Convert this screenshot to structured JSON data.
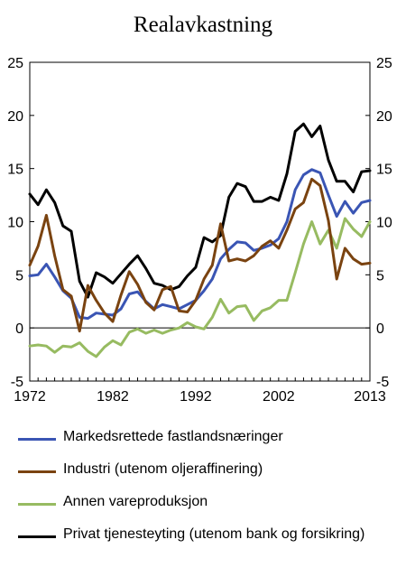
{
  "chart_data": {
    "type": "line",
    "title": "Realavkastning",
    "xlabel": "",
    "ylabel": "",
    "x": [
      1972,
      1973,
      1974,
      1975,
      1976,
      1977,
      1978,
      1979,
      1980,
      1981,
      1982,
      1983,
      1984,
      1985,
      1986,
      1987,
      1988,
      1989,
      1990,
      1991,
      1992,
      1993,
      1994,
      1995,
      1996,
      1997,
      1998,
      1999,
      2000,
      2001,
      2002,
      2003,
      2004,
      2005,
      2006,
      2007,
      2008,
      2009,
      2010,
      2011,
      2012,
      2013
    ],
    "xticks": [
      "1972",
      "1982",
      "1992",
      "2002",
      "2013"
    ],
    "xtick_values": [
      1972,
      1982,
      1992,
      2002,
      2013
    ],
    "xlim": [
      1972,
      2013
    ],
    "ylim": [
      -5,
      25
    ],
    "yticks": [
      "-5",
      "0",
      "5",
      "10",
      "15",
      "20",
      "25"
    ],
    "ytick_values": [
      -5,
      0,
      5,
      10,
      15,
      20,
      25
    ],
    "grid": false,
    "legend_position": "bottom",
    "series": [
      {
        "name": "Markedsrettede fastlandsnæringer",
        "color": "#3a55b4",
        "values": [
          4.9,
          5.0,
          6.0,
          4.8,
          3.5,
          2.8,
          1.0,
          0.9,
          1.4,
          1.3,
          1.2,
          1.8,
          3.2,
          3.4,
          2.5,
          1.8,
          2.2,
          2.0,
          1.8,
          2.2,
          2.6,
          3.5,
          4.6,
          6.5,
          7.4,
          8.1,
          8.0,
          7.3,
          7.5,
          7.8,
          8.4,
          10.0,
          13.0,
          14.4,
          14.9,
          14.6,
          12.5,
          10.5,
          11.9,
          10.8,
          11.8,
          12.0
        ]
      },
      {
        "name": "Industri (utenom oljeraffinering)",
        "color": "#7a4310",
        "values": [
          5.9,
          7.7,
          10.6,
          6.8,
          3.6,
          3.0,
          -0.3,
          4.0,
          2.6,
          1.4,
          0.6,
          3.1,
          5.3,
          4.1,
          2.4,
          1.7,
          3.6,
          3.9,
          1.6,
          1.5,
          2.6,
          4.6,
          5.9,
          9.8,
          6.3,
          6.5,
          6.3,
          6.8,
          7.7,
          8.2,
          7.5,
          9.2,
          11.2,
          11.8,
          14.0,
          13.4,
          10.1,
          4.6,
          7.5,
          6.5,
          6.0,
          6.1
        ]
      },
      {
        "name": "Annen vareproduksjon",
        "color": "#97bb61",
        "values": [
          -1.7,
          -1.6,
          -1.7,
          -2.3,
          -1.7,
          -1.8,
          -1.4,
          -2.2,
          -2.7,
          -1.8,
          -1.2,
          -1.6,
          -0.4,
          -0.1,
          -0.5,
          -0.2,
          -0.5,
          -0.2,
          0.0,
          0.5,
          0.1,
          -0.1,
          1.0,
          2.7,
          1.4,
          2.0,
          2.1,
          0.7,
          1.6,
          1.9,
          2.6,
          2.6,
          5.2,
          7.9,
          10.0,
          7.9,
          9.2,
          7.5,
          10.3,
          9.3,
          8.6,
          10.0
        ]
      },
      {
        "name": "Privat tjenesteyting (utenom bank og forsikring)",
        "color": "#000000",
        "values": [
          12.6,
          11.6,
          13.0,
          11.8,
          9.6,
          9.1,
          4.4,
          2.9,
          5.2,
          4.8,
          4.2,
          5.1,
          6.0,
          6.8,
          5.6,
          4.2,
          4.0,
          3.6,
          3.9,
          4.9,
          5.7,
          8.5,
          8.1,
          8.7,
          12.3,
          13.6,
          13.3,
          11.9,
          11.9,
          12.3,
          12.0,
          14.5,
          18.5,
          19.2,
          18.0,
          19.0,
          15.8,
          13.8,
          13.8,
          12.8,
          14.7,
          14.8
        ]
      }
    ]
  }
}
